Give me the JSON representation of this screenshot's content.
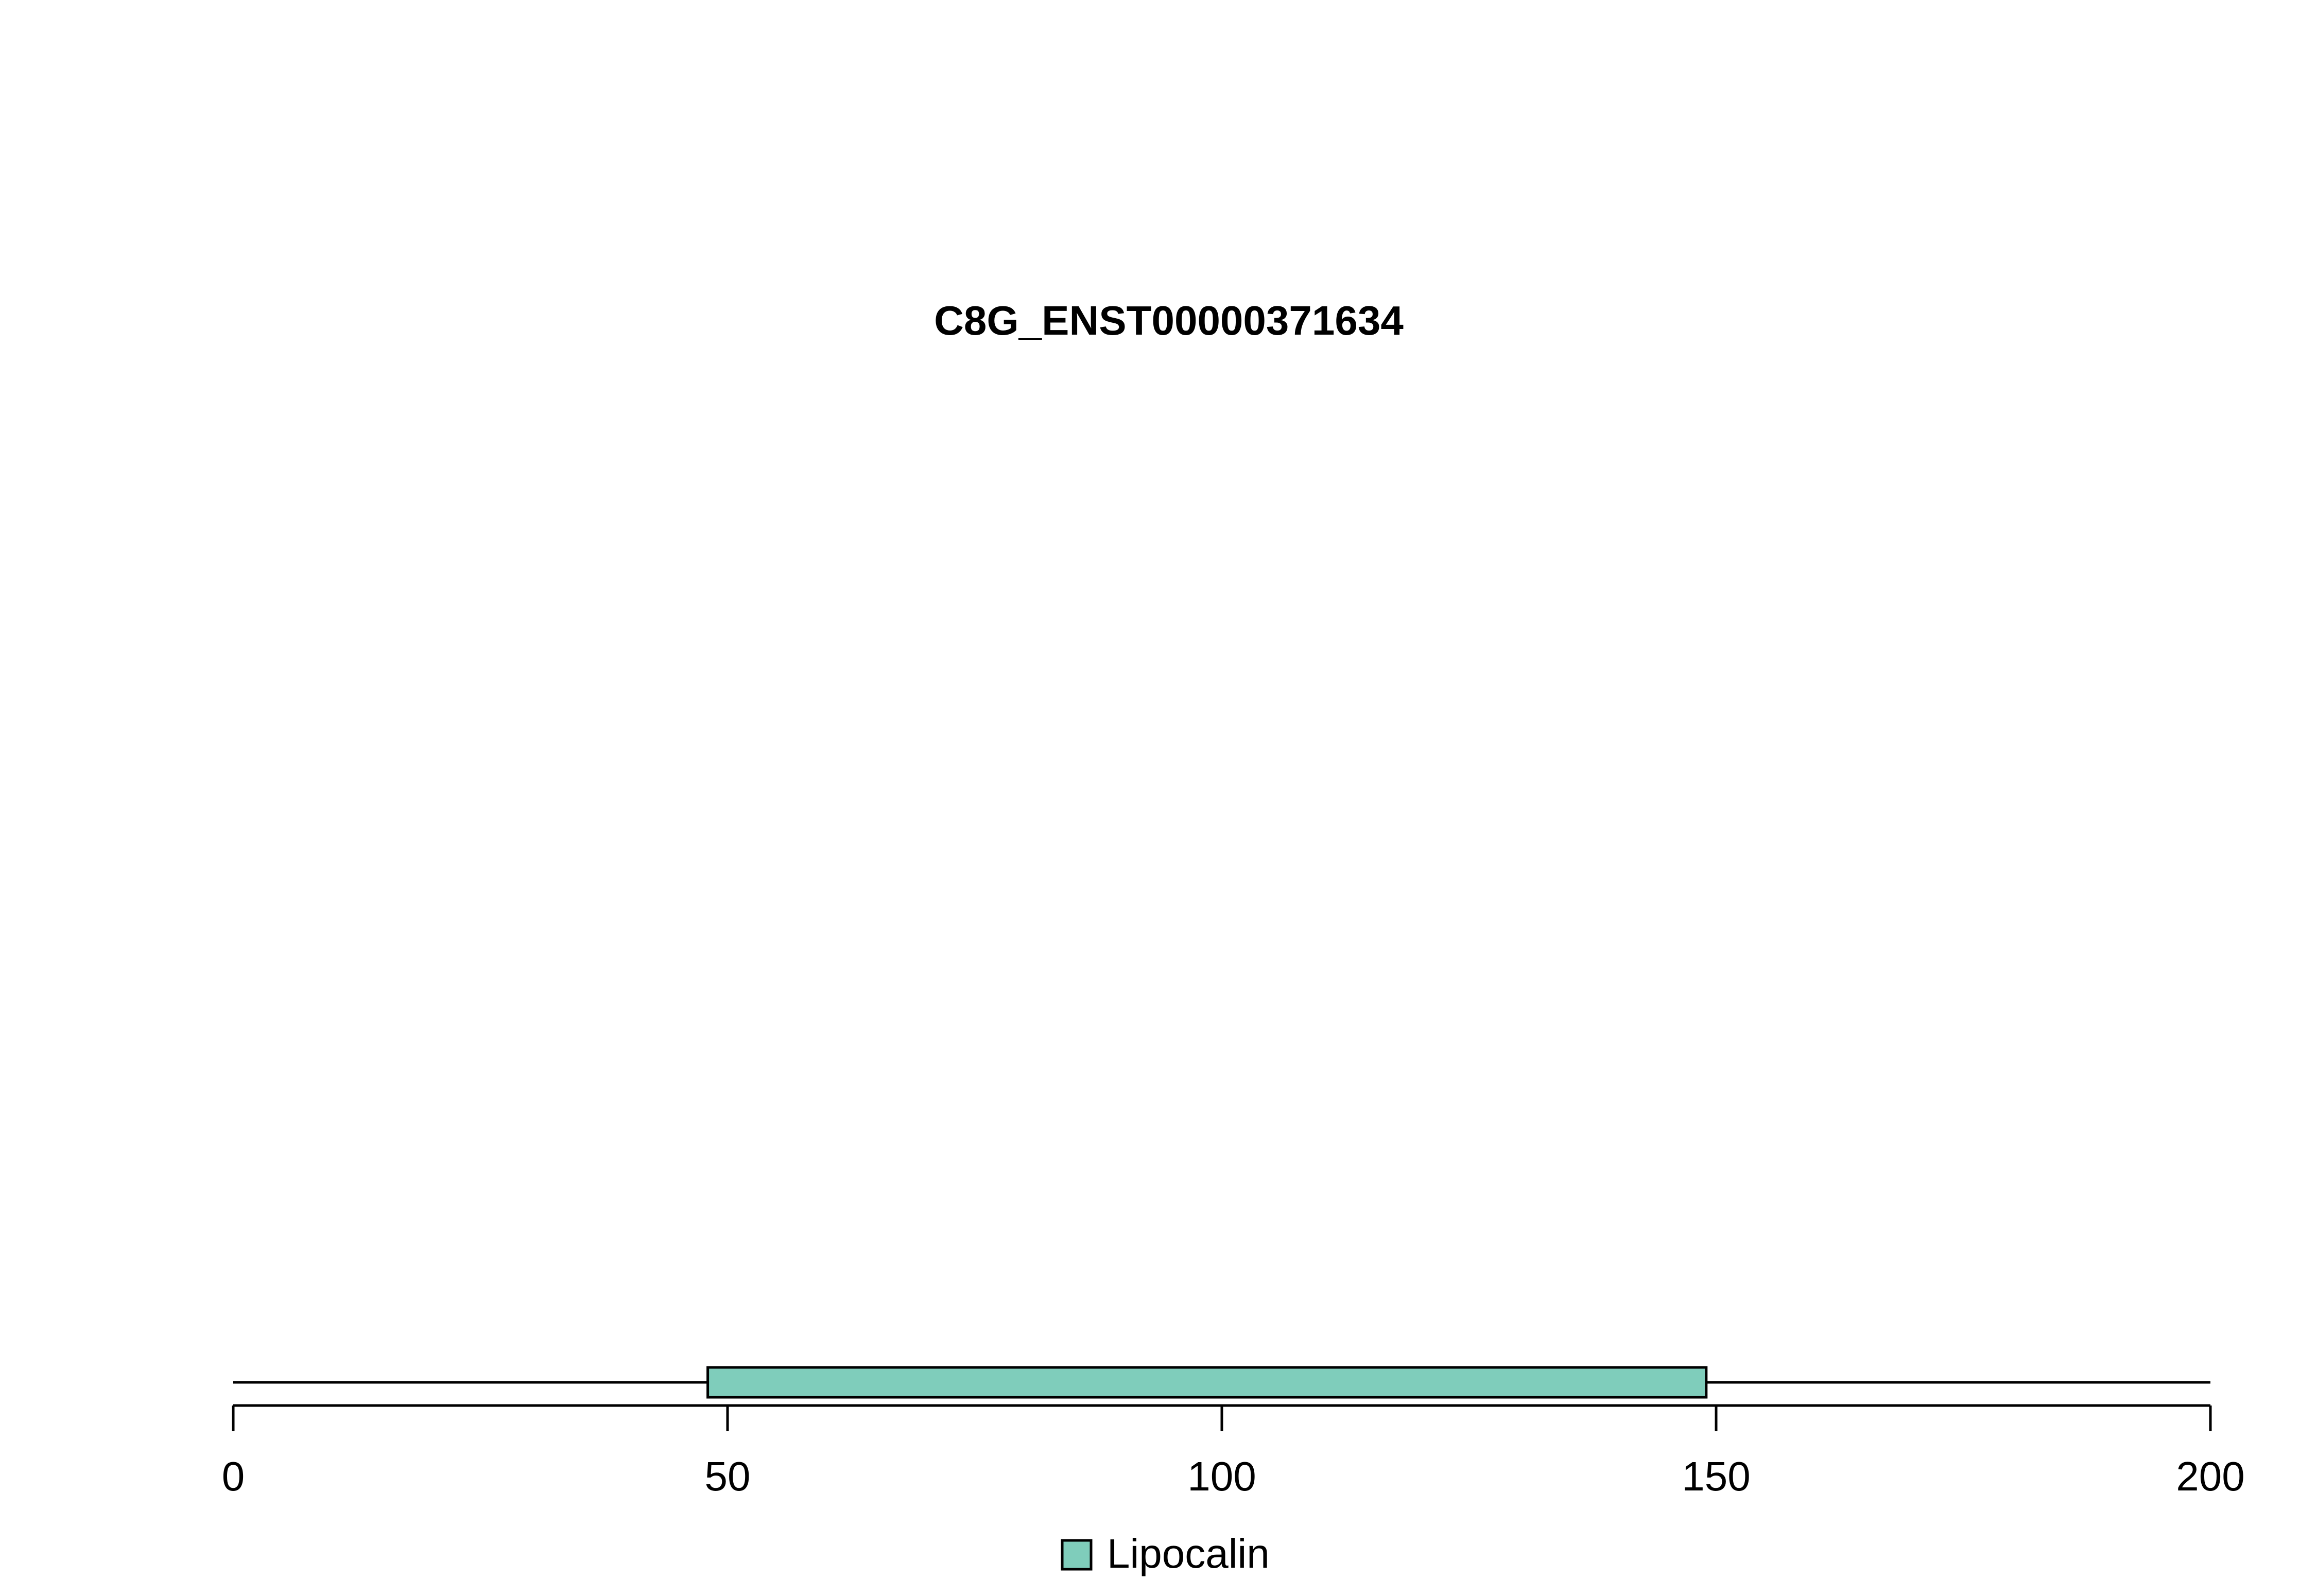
{
  "chart_data": {
    "type": "bar",
    "title": "C8G_ENST00000371634",
    "xlabel": "",
    "ylabel": "",
    "xlim": [
      0,
      200
    ],
    "x_ticks": [
      0,
      50,
      100,
      150,
      200
    ],
    "x_tick_labels": [
      "0",
      "50",
      "100",
      "150",
      "200"
    ],
    "protein_length": 200,
    "domains": [
      {
        "name": "Lipocalin",
        "start": 48,
        "end": 149,
        "color": "#7fcdbb"
      }
    ],
    "legend": {
      "placement": "bottom-center",
      "entries": [
        {
          "label": "Lipocalin",
          "color": "#7fcdbb"
        }
      ]
    },
    "grid": false
  }
}
